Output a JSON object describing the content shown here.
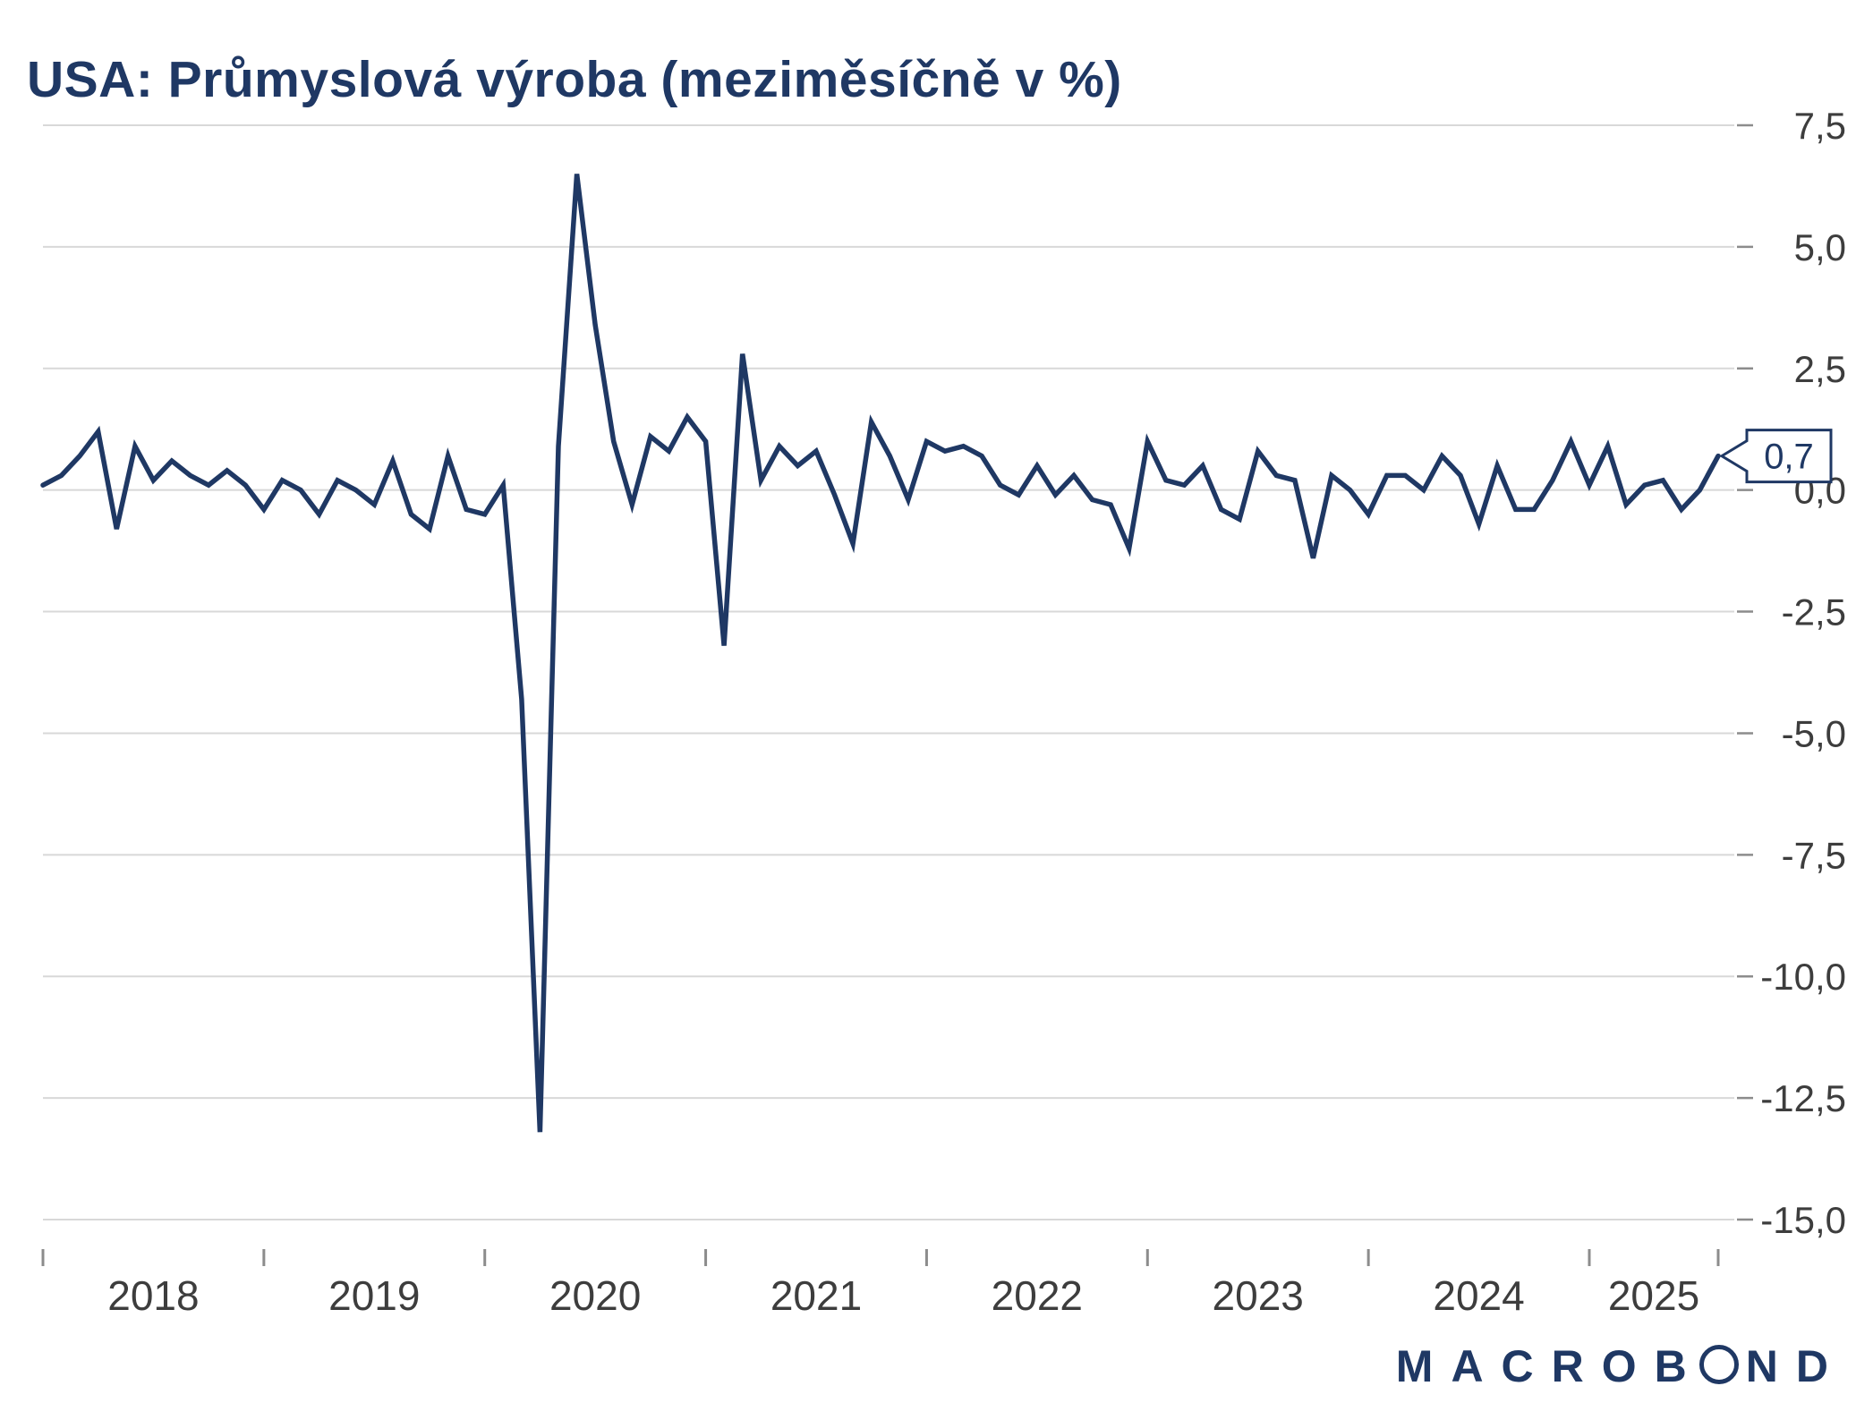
{
  "title": "USA: Průmyslová výroba (meziměsíčně v %)",
  "colors": {
    "navy": "#1F3864",
    "line": "#1F3864",
    "grid": "#D8D8D8",
    "tick": "#8C8C8C",
    "axis_text": "#3D3D3D",
    "callout_fill": "#FFFFFF"
  },
  "chart_data": {
    "type": "line",
    "title": "USA: Průmyslová výroba (meziměsíčně v %)",
    "x_start": "2018-01",
    "frequency": "monthly",
    "x_tick_labels": [
      "2018",
      "2019",
      "2020",
      "2021",
      "2022",
      "2023",
      "2024",
      "2025"
    ],
    "y_ticks": [
      7.5,
      5.0,
      2.5,
      0.0,
      -2.5,
      -5.0,
      -7.5,
      -10.0,
      -12.5,
      -15.0
    ],
    "y_tick_labels": [
      "7,5",
      "5,0",
      "2,5",
      "0,0",
      "-2,5",
      "-5,0",
      "-7,5",
      "-10,0",
      "-12,5",
      "-15,0"
    ],
    "ylim": [
      -15.0,
      7.5
    ],
    "grid": true,
    "legend": false,
    "last_value": 0.7,
    "last_value_label": "0,7",
    "series": [
      {
        "name": "USA průmyslová výroba, meziměsíční změna v %",
        "values": [
          0.1,
          0.3,
          0.7,
          1.2,
          -0.8,
          0.9,
          0.2,
          0.6,
          0.3,
          0.1,
          0.4,
          0.1,
          -0.4,
          0.2,
          0.0,
          -0.5,
          0.2,
          0.0,
          -0.3,
          0.6,
          -0.5,
          -0.8,
          0.7,
          -0.4,
          -0.5,
          0.1,
          -4.3,
          -13.2,
          0.9,
          6.5,
          3.4,
          1.0,
          -0.3,
          1.1,
          0.8,
          1.5,
          1.0,
          -3.2,
          2.8,
          0.2,
          0.9,
          0.5,
          0.8,
          -0.1,
          -1.1,
          1.4,
          0.7,
          -0.2,
          1.0,
          0.8,
          0.9,
          0.7,
          0.1,
          -0.1,
          0.5,
          -0.1,
          0.3,
          -0.2,
          -0.3,
          -1.2,
          1.0,
          0.2,
          0.1,
          0.5,
          -0.4,
          -0.6,
          0.8,
          0.3,
          0.2,
          -1.4,
          0.3,
          0.0,
          -0.5,
          0.3,
          0.3,
          0.0,
          0.7,
          0.3,
          -0.7,
          0.5,
          -0.4,
          -0.4,
          0.2,
          1.0,
          0.1,
          0.9,
          -0.3,
          0.1,
          0.2,
          -0.4,
          0.0,
          0.7
        ]
      }
    ]
  },
  "branding": {
    "logo_full": "MACROBOND",
    "logo_before": "MACROB",
    "logo_after": "ND"
  }
}
